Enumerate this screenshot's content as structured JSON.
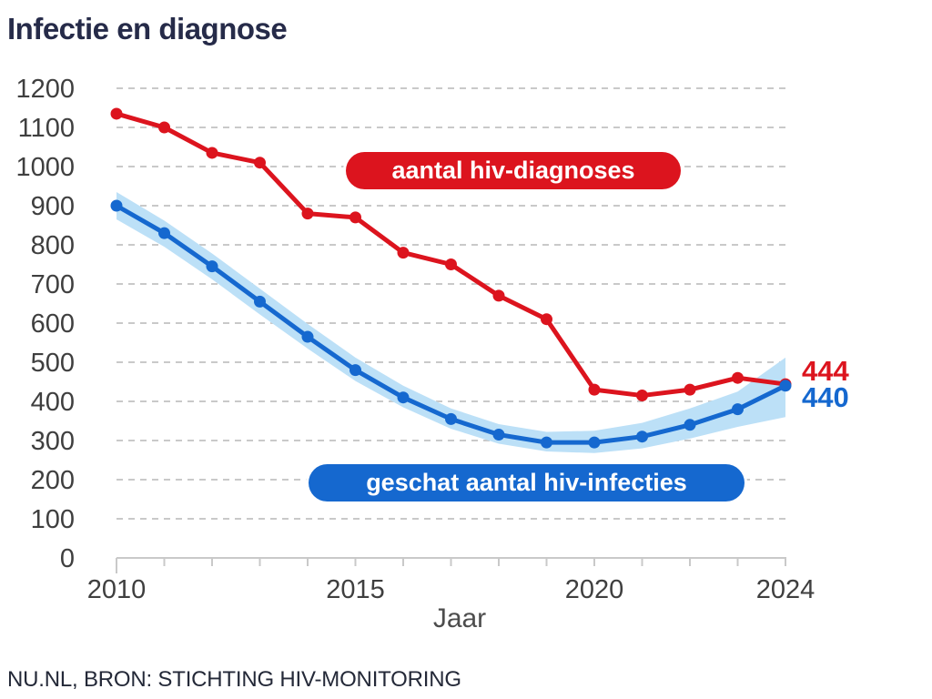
{
  "title": "Infectie en diagnose",
  "footer": "NU.NL, BRON: STICHTING HIV-MONITORING",
  "annotations": {
    "diagnoses_label": "aantal hiv-diagnoses",
    "diagnoses_color": "#dc141e",
    "infections_label": "geschat aantal hiv-infecties",
    "infections_color": "#1568cf",
    "end_value_diagnoses": "444",
    "end_value_infections": "440"
  },
  "chart_data": {
    "type": "line",
    "title": "Infectie en diagnose",
    "xlabel": "Jaar",
    "ylabel": "",
    "ylim": [
      0,
      1200
    ],
    "yticks": [
      0,
      100,
      200,
      300,
      400,
      500,
      600,
      700,
      800,
      900,
      1000,
      1100,
      1200
    ],
    "x": [
      2010,
      2011,
      2012,
      2013,
      2014,
      2015,
      2016,
      2017,
      2018,
      2019,
      2020,
      2021,
      2022,
      2023,
      2024
    ],
    "xticks_labeled": [
      2010,
      2015,
      2020,
      2024
    ],
    "grid": "horizontal-dashed",
    "legend_position": "inline-annotations",
    "series": [
      {
        "name": "aantal hiv-diagnoses",
        "color": "#dc141e",
        "values": [
          1135,
          1100,
          1035,
          1010,
          880,
          870,
          780,
          750,
          670,
          610,
          430,
          415,
          430,
          460,
          444
        ]
      },
      {
        "name": "geschat aantal hiv-infecties",
        "color": "#1568cf",
        "values": [
          900,
          830,
          745,
          655,
          565,
          480,
          410,
          355,
          315,
          295,
          295,
          310,
          340,
          380,
          440
        ],
        "band_color": "#bce0f7",
        "band_lower": [
          865,
          795,
          712,
          622,
          535,
          452,
          385,
          330,
          292,
          272,
          268,
          280,
          305,
          335,
          360
        ],
        "band_upper": [
          935,
          862,
          778,
          688,
          598,
          512,
          440,
          382,
          342,
          322,
          325,
          345,
          382,
          425,
          512
        ]
      }
    ]
  }
}
